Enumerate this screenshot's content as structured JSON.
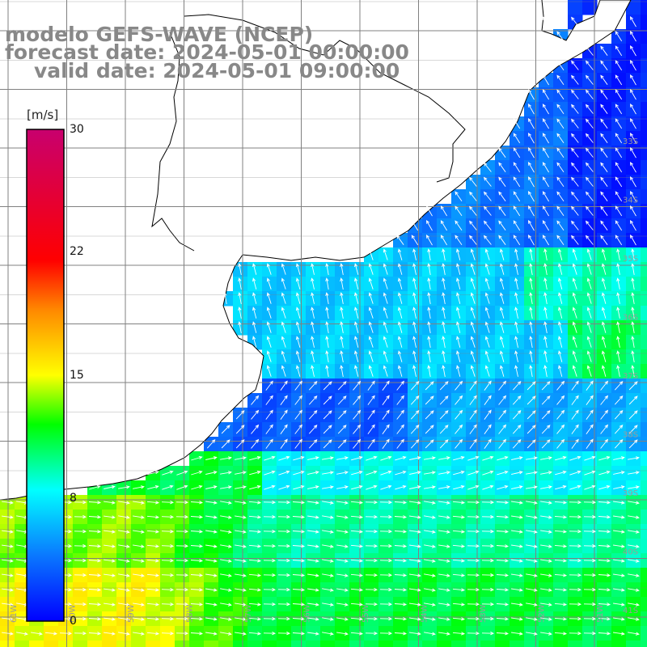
{
  "header": {
    "model_line": "modelo GEFS-WAVE (NCEP)",
    "forecast_line": "forecast date: 2024-05-01 00:00:00",
    "valid_line": "valid date: 2024-05-01 09:00:00"
  },
  "colorbar": {
    "unit": "[m/s]",
    "ticks": [
      {
        "value": 30,
        "label": "30"
      },
      {
        "value": 22,
        "label": "22"
      },
      {
        "value": 15,
        "label": "15"
      },
      {
        "value": 8,
        "label": "8"
      },
      {
        "value": 0,
        "label": "0"
      }
    ],
    "min": 0,
    "max": 30,
    "stops": [
      {
        "value": 0,
        "color": "#0000ff"
      },
      {
        "value": 4,
        "color": "#0a78ff"
      },
      {
        "value": 8,
        "color": "#00ffff"
      },
      {
        "value": 12,
        "color": "#00ff00"
      },
      {
        "value": 15,
        "color": "#ffff00"
      },
      {
        "value": 19,
        "color": "#ff8800"
      },
      {
        "value": 22,
        "color": "#ff0000"
      },
      {
        "value": 30,
        "color": "#c8006e"
      }
    ]
  },
  "map": {
    "lon_labels": [
      "61W",
      "60W",
      "59W",
      "58W",
      "57W",
      "56W",
      "55W",
      "54W",
      "53W",
      "52W",
      "51W"
    ],
    "lat_labels": [
      "33S",
      "34S",
      "35S",
      "36S",
      "37S",
      "38S",
      "39S",
      "40S",
      "41S"
    ],
    "land_color": "#ffffff",
    "coast_color": "#000000",
    "grid_color": "#808080",
    "arrow_color": "#ffffff"
  }
}
